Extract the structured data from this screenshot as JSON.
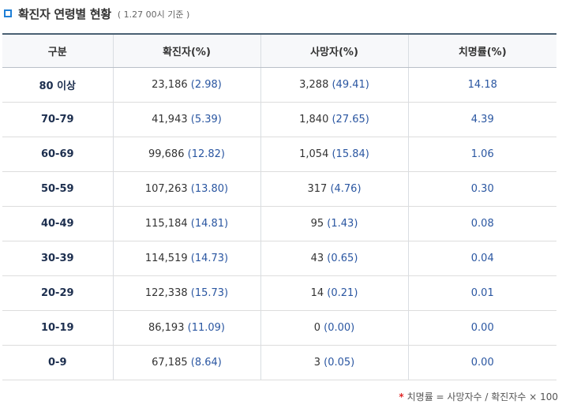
{
  "header": {
    "title": "확진자 연령별 현황",
    "subtitle": "( 1.27 00시 기준 )",
    "icon": "square-bullet-icon",
    "accent_color": "#1f7fd6"
  },
  "table": {
    "columns": [
      "구분",
      "확진자(%)",
      "사망자(%)",
      "치명률(%)"
    ],
    "rows": [
      {
        "age": "80 이상",
        "confirmed": "23,186",
        "confirmed_pct": "(2.98)",
        "deaths": "3,288",
        "deaths_pct": "(49.41)",
        "fatality": "14.18"
      },
      {
        "age": "70-79",
        "confirmed": "41,943",
        "confirmed_pct": "(5.39)",
        "deaths": "1,840",
        "deaths_pct": "(27.65)",
        "fatality": "4.39"
      },
      {
        "age": "60-69",
        "confirmed": "99,686",
        "confirmed_pct": "(12.82)",
        "deaths": "1,054",
        "deaths_pct": "(15.84)",
        "fatality": "1.06"
      },
      {
        "age": "50-59",
        "confirmed": "107,263",
        "confirmed_pct": "(13.80)",
        "deaths": "317",
        "deaths_pct": "(4.76)",
        "fatality": "0.30"
      },
      {
        "age": "40-49",
        "confirmed": "115,184",
        "confirmed_pct": "(14.81)",
        "deaths": "95",
        "deaths_pct": "(1.43)",
        "fatality": "0.08"
      },
      {
        "age": "30-39",
        "confirmed": "114,519",
        "confirmed_pct": "(14.73)",
        "deaths": "43",
        "deaths_pct": "(0.65)",
        "fatality": "0.04"
      },
      {
        "age": "20-29",
        "confirmed": "122,338",
        "confirmed_pct": "(15.73)",
        "deaths": "14",
        "deaths_pct": "(0.21)",
        "fatality": "0.01"
      },
      {
        "age": "10-19",
        "confirmed": "86,193",
        "confirmed_pct": "(11.09)",
        "deaths": "0",
        "deaths_pct": "(0.00)",
        "fatality": "0.00"
      },
      {
        "age": "0-9",
        "confirmed": "67,185",
        "confirmed_pct": "(8.64)",
        "deaths": "3",
        "deaths_pct": "(0.05)",
        "fatality": "0.00"
      }
    ]
  },
  "footnote": {
    "marker": "*",
    "text": "치명률 = 사망자수 / 확진자수 × 100"
  }
}
